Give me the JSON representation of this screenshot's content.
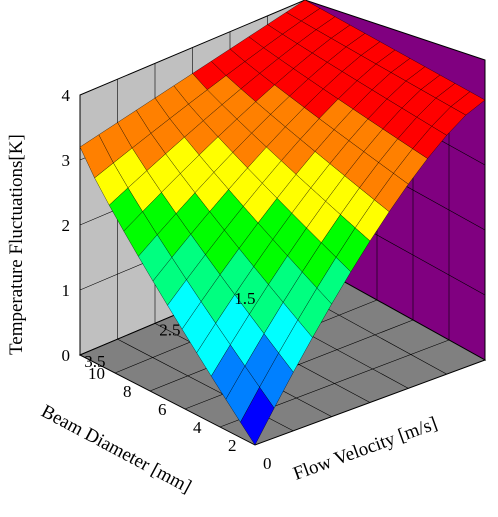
{
  "chart_data": {
    "type": "surface",
    "title": "",
    "xlabel": "Beam Diameter [mm]",
    "ylabel": "Flow Velocity [m/s]",
    "zlabel": "Temperature Fluctuations[K]",
    "x_ticks": [
      "1.5",
      "2.5",
      "3.5"
    ],
    "y_ticks": [
      "0",
      "2",
      "4",
      "6",
      "8",
      "10"
    ],
    "z_ticks": [
      "0",
      "1",
      "2",
      "3",
      "4"
    ],
    "xlim": [
      1,
      4
    ],
    "ylim": [
      0,
      10
    ],
    "zlim": [
      0,
      4
    ],
    "colormap": [
      "#0000ff",
      "#0080ff",
      "#00ffff",
      "#00ff80",
      "#00ff00",
      "#ffff00",
      "#ff8000",
      "#ff0000"
    ],
    "wall_colors": {
      "back_left": "#c0c0c0",
      "back_right": "#800080",
      "floor": "#808080"
    },
    "grid": true,
    "surface_description_values": {
      "corner_small_diameter_high_velocity": 4,
      "corner_small_diameter_zero_velocity": 4,
      "corner_large_diameter_high_velocity": 3.2,
      "corner_large_diameter_zero_velocity": 0
    }
  }
}
